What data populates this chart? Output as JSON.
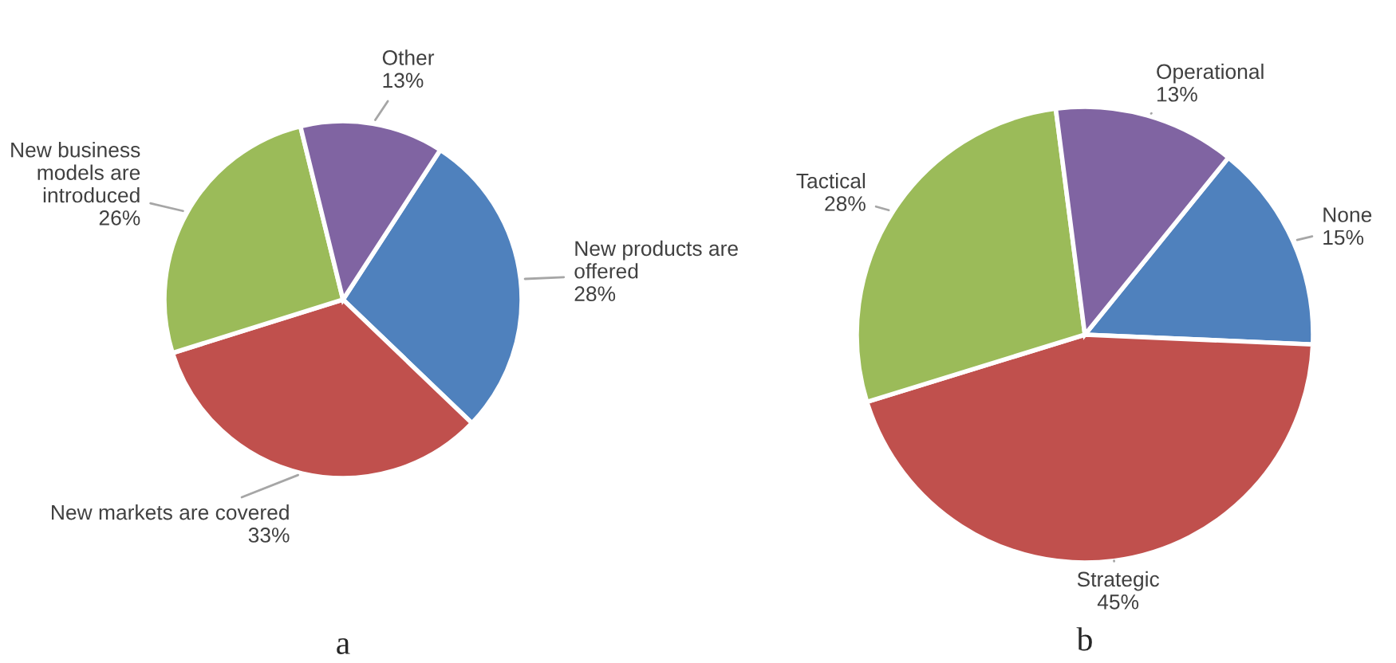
{
  "chart_data": [
    {
      "type": "pie",
      "title": "a",
      "categories": [
        "New products are\noffered",
        "New markets are covered",
        "New business\nmodels are\nintroduced",
        "Other"
      ],
      "values": [
        28,
        33,
        26,
        13
      ],
      "value_labels": [
        "28%",
        "33%",
        "26%",
        "13%"
      ],
      "colors": [
        "#4f81bd",
        "#c0504d",
        "#9bbb59",
        "#8064a2"
      ],
      "legend": false
    },
    {
      "type": "pie",
      "title": "b",
      "categories": [
        "None",
        "Strategic",
        "Tactical",
        "Operational"
      ],
      "values": [
        15,
        45,
        28,
        13
      ],
      "value_labels": [
        "15%",
        "45%",
        "28%",
        "13%"
      ],
      "colors": [
        "#4f81bd",
        "#c0504d",
        "#9bbb59",
        "#8064a2"
      ],
      "legend": false
    }
  ]
}
